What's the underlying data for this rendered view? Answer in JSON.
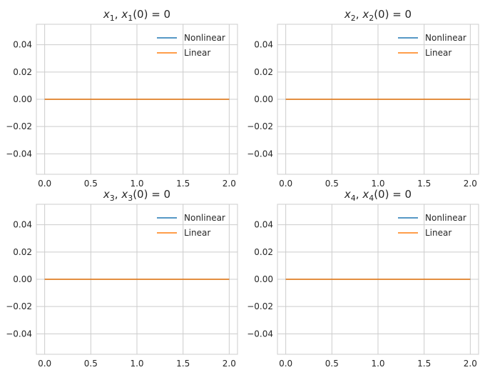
{
  "colors": {
    "nonlinear": "#1f77b4",
    "linear": "#ff7f0e",
    "grid": "#cccccc",
    "spine": "#cccccc"
  },
  "chart_data": [
    {
      "type": "line",
      "title": "x1, x1(0) = 0",
      "title_parts": {
        "var": "x",
        "sub": "1",
        "init_sub": "1",
        "rest": "(0) = 0"
      },
      "xlim": [
        -0.09,
        2.09
      ],
      "ylim": [
        -0.055,
        0.055
      ],
      "xticks": [
        0.0,
        0.5,
        1.0,
        1.5,
        2.0
      ],
      "xtick_labels": [
        "0.0",
        "0.5",
        "1.0",
        "1.5",
        "2.0"
      ],
      "yticks": [
        0.04,
        0.02,
        0.0,
        -0.02,
        -0.04
      ],
      "ytick_labels": [
        "0.04",
        "0.02",
        "0.00",
        "−0.02",
        "−0.04"
      ],
      "grid": true,
      "legend": "top-right",
      "series": [
        {
          "name": "Nonlinear",
          "color_key": "nonlinear",
          "x": [
            0.0,
            2.0
          ],
          "y": [
            0.0,
            0.0
          ]
        },
        {
          "name": "Linear",
          "color_key": "linear",
          "x": [
            0.0,
            2.0
          ],
          "y": [
            0.0,
            0.0
          ]
        }
      ]
    },
    {
      "type": "line",
      "title": "x2, x2(0) = 0",
      "title_parts": {
        "var": "x",
        "sub": "2",
        "init_sub": "2",
        "rest": "(0) = 0"
      },
      "xlim": [
        -0.09,
        2.09
      ],
      "ylim": [
        -0.055,
        0.055
      ],
      "xticks": [
        0.0,
        0.5,
        1.0,
        1.5,
        2.0
      ],
      "xtick_labels": [
        "0.0",
        "0.5",
        "1.0",
        "1.5",
        "2.0"
      ],
      "yticks": [
        0.04,
        0.02,
        0.0,
        -0.02,
        -0.04
      ],
      "ytick_labels": [
        "0.04",
        "0.02",
        "0.00",
        "−0.02",
        "−0.04"
      ],
      "grid": true,
      "legend": "top-right",
      "series": [
        {
          "name": "Nonlinear",
          "color_key": "nonlinear",
          "x": [
            0.0,
            2.0
          ],
          "y": [
            0.0,
            0.0
          ]
        },
        {
          "name": "Linear",
          "color_key": "linear",
          "x": [
            0.0,
            2.0
          ],
          "y": [
            0.0,
            0.0
          ]
        }
      ]
    },
    {
      "type": "line",
      "title": "x3, x3(0) = 0",
      "title_parts": {
        "var": "x",
        "sub": "3",
        "init_sub": "3",
        "rest": "(0) = 0"
      },
      "xlim": [
        -0.09,
        2.09
      ],
      "ylim": [
        -0.055,
        0.055
      ],
      "xticks": [
        0.0,
        0.5,
        1.0,
        1.5,
        2.0
      ],
      "xtick_labels": [
        "0.0",
        "0.5",
        "1.0",
        "1.5",
        "2.0"
      ],
      "yticks": [
        0.04,
        0.02,
        0.0,
        -0.02,
        -0.04
      ],
      "ytick_labels": [
        "0.04",
        "0.02",
        "0.00",
        "−0.02",
        "−0.04"
      ],
      "grid": true,
      "legend": "top-right",
      "series": [
        {
          "name": "Nonlinear",
          "color_key": "nonlinear",
          "x": [
            0.0,
            2.0
          ],
          "y": [
            0.0,
            0.0
          ]
        },
        {
          "name": "Linear",
          "color_key": "linear",
          "x": [
            0.0,
            2.0
          ],
          "y": [
            0.0,
            0.0
          ]
        }
      ]
    },
    {
      "type": "line",
      "title": "x4, x4(0) = 0",
      "title_parts": {
        "var": "x",
        "sub": "4",
        "init_sub": "4",
        "rest": "(0) = 0"
      },
      "xlim": [
        -0.09,
        2.09
      ],
      "ylim": [
        -0.055,
        0.055
      ],
      "xticks": [
        0.0,
        0.5,
        1.0,
        1.5,
        2.0
      ],
      "xtick_labels": [
        "0.0",
        "0.5",
        "1.0",
        "1.5",
        "2.0"
      ],
      "yticks": [
        0.04,
        0.02,
        0.0,
        -0.02,
        -0.04
      ],
      "ytick_labels": [
        "0.04",
        "0.02",
        "0.00",
        "−0.02",
        "−0.04"
      ],
      "grid": true,
      "legend": "top-right",
      "series": [
        {
          "name": "Nonlinear",
          "color_key": "nonlinear",
          "x": [
            0.0,
            2.0
          ],
          "y": [
            0.0,
            0.0
          ]
        },
        {
          "name": "Linear",
          "color_key": "linear",
          "x": [
            0.0,
            2.0
          ],
          "y": [
            0.0,
            0.0
          ]
        }
      ]
    }
  ]
}
